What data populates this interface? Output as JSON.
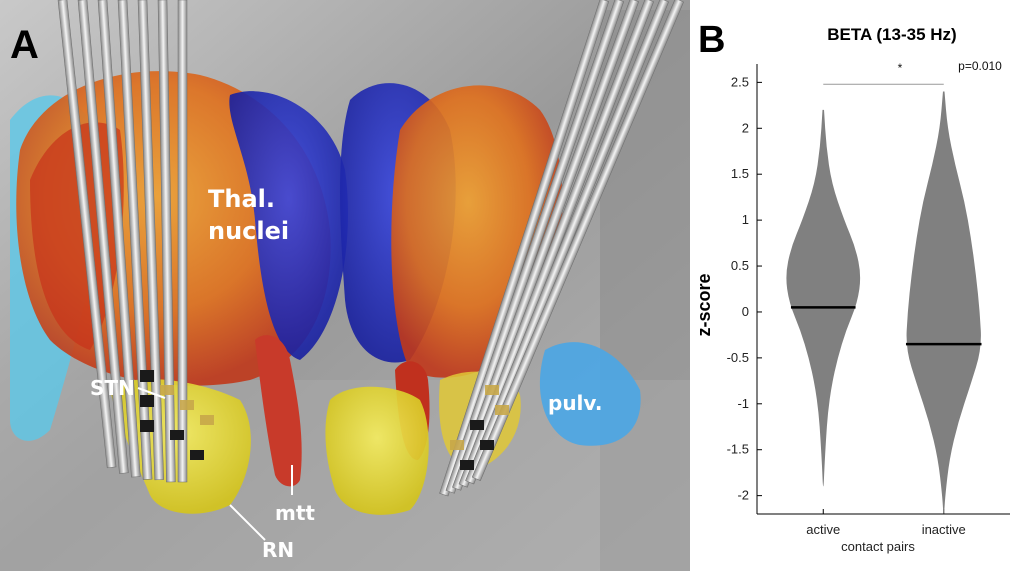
{
  "panel_a": {
    "letter": "A",
    "labels": {
      "thal_line1": "Thal.",
      "thal_line2": "nuclei",
      "stn": "STN",
      "mtt": "mtt",
      "rn": "RN",
      "pulv": "pulv."
    }
  },
  "panel_b": {
    "letter": "B"
  },
  "chart_data": {
    "type": "violin",
    "title": "BETA (13-35 Hz)",
    "xlabel": "contact pairs",
    "ylabel": "z-score",
    "categories": [
      "active",
      "inactive"
    ],
    "ylim": [
      -2.2,
      2.7
    ],
    "yticks": [
      "2.5",
      "2",
      "1.5",
      "1",
      "0.5",
      "0",
      "-0.5",
      "-1",
      "-1.5",
      "-2"
    ],
    "ytick_values": [
      2.5,
      2,
      1.5,
      1,
      0.5,
      0,
      -0.5,
      -1,
      -1.5,
      -2
    ],
    "medians": [
      0.05,
      -0.35
    ],
    "violins": [
      {
        "name": "active",
        "y": [
          2.2,
          1.8,
          1.4,
          1.0,
          0.7,
          0.4,
          0.1,
          -0.2,
          -0.5,
          -0.8,
          -1.1,
          -1.4,
          -1.7,
          -1.9
        ],
        "density": [
          0.02,
          0.08,
          0.22,
          0.55,
          0.85,
          1.0,
          0.9,
          0.6,
          0.38,
          0.22,
          0.12,
          0.07,
          0.03,
          0.01
        ]
      },
      {
        "name": "inactive",
        "y": [
          2.4,
          2.0,
          1.6,
          1.2,
          0.8,
          0.4,
          0.0,
          -0.4,
          -0.8,
          -1.2,
          -1.6,
          -2.0,
          -2.2
        ],
        "density": [
          0.02,
          0.1,
          0.3,
          0.55,
          0.72,
          0.85,
          0.95,
          1.0,
          0.7,
          0.38,
          0.15,
          0.04,
          0.01
        ]
      }
    ],
    "significance": {
      "marker": "*",
      "p_text": "p=0.010"
    },
    "violin_color": "#808080",
    "median_color": "#000000"
  }
}
